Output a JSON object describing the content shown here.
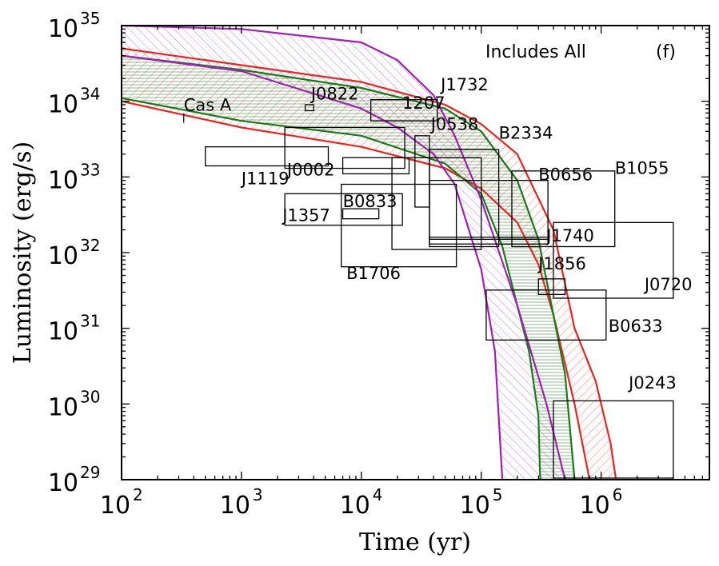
{
  "chart_data": {
    "type": "line",
    "title": "",
    "xlabel": "Time (yr)",
    "ylabel": "Luminosity (erg/s)",
    "xscale": "log",
    "yscale": "log",
    "xlim": [
      100,
      8000000
    ],
    "ylim": [
      1e+29,
      1e+35
    ],
    "x_ticks": [
      {
        "value": 100,
        "mant": "10",
        "exp": "2"
      },
      {
        "value": 1000,
        "mant": "10",
        "exp": "3"
      },
      {
        "value": 10000,
        "mant": "10",
        "exp": "4"
      },
      {
        "value": 100000,
        "mant": "10",
        "exp": "5"
      },
      {
        "value": 1000000,
        "mant": "10",
        "exp": "6"
      }
    ],
    "y_ticks": [
      {
        "value": 1e+29,
        "mant": "10",
        "exp": "29"
      },
      {
        "value": 1e+30,
        "mant": "10",
        "exp": "30"
      },
      {
        "value": 1e+31,
        "mant": "10",
        "exp": "31"
      },
      {
        "value": 1e+32,
        "mant": "10",
        "exp": "32"
      },
      {
        "value": 1e+33,
        "mant": "10",
        "exp": "33"
      },
      {
        "value": 1e+34,
        "mant": "10",
        "exp": "34"
      },
      {
        "value": 1e+35,
        "mant": "10",
        "exp": "35"
      }
    ],
    "annotations": [
      {
        "text": "Includes All",
        "x": 15000000,
        "y": 6.5e+34
      },
      {
        "text": "(f)",
        "x": 1400000,
        "y": 6.5e+34
      }
    ],
    "series": [
      {
        "name": "red-upper",
        "color": "#e8251f",
        "points": [
          [
            100,
            5e+34
          ],
          [
            1000,
            3e+34
          ],
          [
            10000,
            1.8e+34
          ],
          [
            50000,
            9e+33
          ],
          [
            100000,
            5e+33
          ],
          [
            200000,
            2e+33
          ],
          [
            400000,
            2e+32
          ],
          [
            600000,
            1e+31
          ],
          [
            900000,
            2e+30
          ],
          [
            1200000,
            3e+29
          ],
          [
            1330000,
            1e+29
          ]
        ]
      },
      {
        "name": "red-lower",
        "color": "#e8251f",
        "points": [
          [
            100,
            1e+34
          ],
          [
            1000,
            4.5e+33
          ],
          [
            10000,
            2.5e+33
          ],
          [
            50000,
            1.3e+33
          ],
          [
            100000,
            7e+32
          ],
          [
            200000,
            2.5e+32
          ],
          [
            300000,
            7e+31
          ],
          [
            400000,
            1.5e+31
          ],
          [
            600000,
            1e+30
          ],
          [
            800000,
            1e+29
          ]
        ]
      },
      {
        "name": "green-upper",
        "color": "#1a7a1a",
        "points": [
          [
            100,
            4e+34
          ],
          [
            1000,
            2.6e+34
          ],
          [
            10000,
            1.5e+34
          ],
          [
            50000,
            8e+33
          ],
          [
            100000,
            4e+33
          ],
          [
            200000,
            9e+32
          ],
          [
            300000,
            1.5e+32
          ],
          [
            400000,
            1.5e+31
          ],
          [
            500000,
            2.5e+30
          ],
          [
            600000,
            1e+29
          ]
        ]
      },
      {
        "name": "green-lower",
        "color": "#1a7a1a",
        "points": [
          [
            100,
            1.1e+34
          ],
          [
            1000,
            5.5e+33
          ],
          [
            10000,
            3.5e+33
          ],
          [
            50000,
            1.5e+33
          ],
          [
            100000,
            6e+32
          ],
          [
            150000,
            1.2e+32
          ],
          [
            200000,
            2e+31
          ],
          [
            250000,
            5e+30
          ],
          [
            300000,
            7e+29
          ],
          [
            310000,
            1e+29
          ]
        ]
      },
      {
        "name": "purple-upper",
        "color": "#a21fb3",
        "points": [
          [
            100,
            1e+35
          ],
          [
            1000,
            9e+34
          ],
          [
            10000,
            6e+34
          ],
          [
            20000,
            3.5e+34
          ],
          [
            40000,
            1.2e+34
          ],
          [
            60000,
            3.5e+33
          ],
          [
            100000,
            5e+32
          ],
          [
            200000,
            2e+31
          ],
          [
            350000,
            1e+30
          ],
          [
            500000,
            1e+29
          ]
        ]
      },
      {
        "name": "purple-lower",
        "color": "#a21fb3",
        "points": [
          [
            100,
            4e+34
          ],
          [
            1000,
            2.5e+34
          ],
          [
            10000,
            8e+33
          ],
          [
            20000,
            4.5e+33
          ],
          [
            40000,
            2e+33
          ],
          [
            60000,
            8e+32
          ],
          [
            100000,
            6e+31
          ],
          [
            130000,
            5e+30
          ],
          [
            150000,
            1e+29
          ]
        ]
      }
    ],
    "bands": [
      {
        "name": "purple-band",
        "upper": "purple-upper",
        "lower": "purple-lower",
        "color": "#a21fb3",
        "pattern": "diag-left"
      },
      {
        "name": "green-band",
        "upper": "green-upper",
        "lower": "green-lower",
        "color": "#1a7a1a",
        "pattern": "horizontal"
      },
      {
        "name": "red-band",
        "upper": "red-upper",
        "lower": "red-lower",
        "color": "#e8251f",
        "pattern": "diag-right"
      }
    ],
    "sources": [
      {
        "name": "Cas A",
        "xmin": 330,
        "xmax": 330,
        "ymin": 6e+33,
        "ymax": 6e+33,
        "label_x": 330,
        "label_y": 7.5e+33
      },
      {
        "name": "J0822",
        "xmin": 3400,
        "xmax": 4000,
        "ymin": 7.5e+33,
        "ymax": 9e+33,
        "label_x": 3800,
        "label_y": 1.05e+34
      },
      {
        "name": "1207",
        "xmin": 12000,
        "xmax": 43000,
        "ymin": 5.5e+33,
        "ymax": 1.05e+34,
        "label_x": 22000,
        "label_y": 8e+33
      },
      {
        "name": "J1732",
        "xmin": 43000,
        "xmax": 43000,
        "ymin": 9.5e+33,
        "ymax": 9.5e+33,
        "label_x": 46000,
        "label_y": 1.4e+34
      },
      {
        "name": "J0538",
        "xmin": 28000,
        "xmax": 37000,
        "ymin": 4e+32,
        "ymax": 3.5e+33,
        "label_x": 38000,
        "label_y": 4.2e+33
      },
      {
        "name": "B2334",
        "xmin": 37000,
        "xmax": 140000,
        "ymin": 1.2e+32,
        "ymax": 2.3e+33,
        "label_x": 140000,
        "label_y": 3.2e+33
      },
      {
        "name": "J1119",
        "xmin": 500,
        "xmax": 5300,
        "ymin": 1.4e+33,
        "ymax": 2.5e+33,
        "label_x": 1000,
        "label_y": 8e+32
      },
      {
        "name": "J0002",
        "xmin": 2300,
        "xmax": 23000,
        "ymin": 1.3e+33,
        "ymax": 4.5e+33,
        "label_x": 2400,
        "label_y": 1.05e+33
      },
      {
        "name": "B0656",
        "xmin": 7000,
        "xmax": 25000,
        "ymin": 1.1e+33,
        "ymax": 1.8e+33,
        "label_x": 300000,
        "label_y": 9e+32
      },
      {
        "name": "B1055",
        "xmin": 180000,
        "xmax": 1300000,
        "ymin": 1.2e+32,
        "ymax": 1.2e+33,
        "label_x": 1300000,
        "label_y": 1.1e+33
      },
      {
        "name": "B0833",
        "xmin": 2300,
        "xmax": 22000,
        "ymin": 2.3e+32,
        "ymax": 6e+32,
        "label_x": 7000,
        "label_y": 4e+32
      },
      {
        "name": "J1357",
        "xmin": 7000,
        "xmax": 14000,
        "ymin": 2.8e+32,
        "ymax": 3.8e+32,
        "label_x": 2200,
        "label_y": 2.6e+32
      },
      {
        "name": "B1706",
        "xmin": 6800,
        "xmax": 62000,
        "ymin": 6.5e+31,
        "ymax": 8e+32,
        "label_x": 7500,
        "label_y": 4.5e+31
      },
      {
        "name": "J1740",
        "xmin": 37000,
        "xmax": 360000,
        "ymin": 1.5e+32,
        "ymax": 1.6e+32,
        "label_x": 350000,
        "label_y": 1.4e+32
      },
      {
        "name": "J1856",
        "xmin": 300000,
        "xmax": 500000,
        "ymin": 2.8e+31,
        "ymax": 4.5e+31,
        "label_x": 300000,
        "label_y": 6e+31
      },
      {
        "name": "J0720",
        "xmin": 400000,
        "xmax": 4000000,
        "ymin": 2.5e+31,
        "ymax": 2.5e+32,
        "label_x": 2300000,
        "label_y": 3.2e+31
      },
      {
        "name": "B0633",
        "xmin": 110000,
        "xmax": 1100000,
        "ymin": 7e+30,
        "ymax": 3.2e+31,
        "label_x": 1150000,
        "label_y": 9e+30
      },
      {
        "name": "J0243",
        "xmin": 400000,
        "xmax": 4000000,
        "ymin": 1.05e+29,
        "ymax": 1.1e+30,
        "label_x": 1700000,
        "label_y": 1.6e+30
      },
      {
        "name": "J1357b",
        "xmin": 18000,
        "xmax": 100000,
        "ymin": 1.1e+32,
        "ymax": 1.8e+33,
        "label_x": 0,
        "label_y": 0,
        "hidden_label": true
      },
      {
        "name": "J0538b",
        "xmin": 37000,
        "xmax": 360000,
        "ymin": 1.3e+32,
        "ymax": 9e+32,
        "label_x": 0,
        "label_y": 0,
        "hidden_label": true
      }
    ]
  }
}
